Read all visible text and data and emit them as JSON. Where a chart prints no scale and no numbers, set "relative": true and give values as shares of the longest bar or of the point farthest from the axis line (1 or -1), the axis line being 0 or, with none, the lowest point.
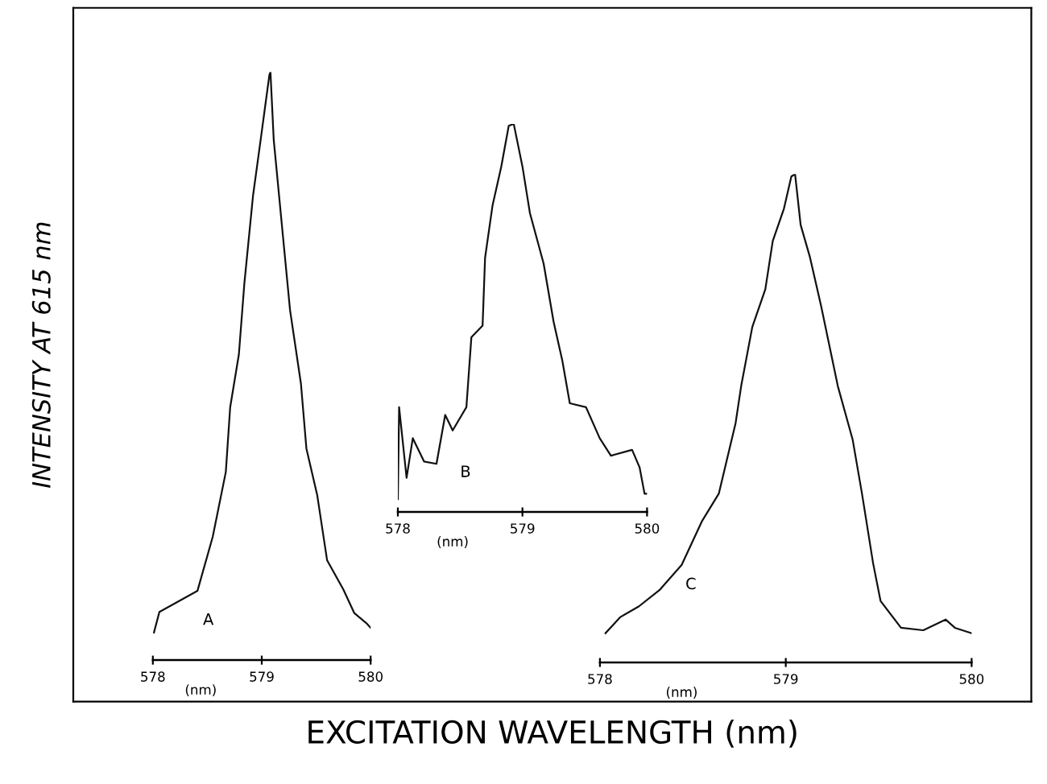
{
  "chart_data": [
    {
      "type": "other",
      "xlabel": "EXCITATION WAVELENGTH (nm)",
      "ylabel": "INTENSITY AT 615 nm"
    },
    {
      "type": "line",
      "relative": true,
      "xlabel": "(nm)",
      "xlim": [
        578,
        580
      ],
      "xticks": [
        578,
        579,
        580
      ],
      "tick_labels": "x",
      "grid": false,
      "annotations": [
        "A"
      ],
      "series": [
        {
          "color": "#111111",
          "x": [
            578.01,
            578.06,
            578.41,
            578.55,
            578.67,
            578.71,
            578.79,
            578.84,
            578.92,
            578.99,
            579.07,
            579.08,
            579.11,
            579.19,
            579.26,
            579.36,
            579.41,
            579.51,
            579.6,
            579.75,
            579.85,
            579.96,
            580.0
          ],
          "values": [
            0.047,
            0.082,
            0.118,
            0.21,
            0.32,
            0.43,
            0.52,
            0.64,
            0.79,
            0.885,
            0.995,
            1.0,
            0.885,
            0.73,
            0.595,
            0.47,
            0.36,
            0.28,
            0.17,
            0.12,
            0.08,
            0.063,
            0.055
          ]
        }
      ]
    },
    {
      "type": "line",
      "relative": true,
      "xlabel": "(nm)",
      "xlim": [
        578,
        580
      ],
      "xticks": [
        578,
        579,
        580
      ],
      "tick_labels": "x",
      "grid": false,
      "annotations": [
        "B"
      ],
      "series": [
        {
          "color": "#111111",
          "x": [
            578.0,
            578.01,
            578.07,
            578.12,
            578.21,
            578.31,
            578.38,
            578.44,
            578.55,
            578.59,
            578.68,
            578.7,
            578.76,
            578.83,
            578.89,
            578.93,
            579.0,
            579.06,
            579.17,
            579.25,
            579.32,
            579.38,
            579.51,
            579.62,
            579.71,
            579.88,
            579.94,
            579.98,
            580.0
          ],
          "values": [
            0.033,
            0.27,
            0.088,
            0.19,
            0.13,
            0.124,
            0.25,
            0.21,
            0.27,
            0.45,
            0.48,
            0.655,
            0.79,
            0.89,
            0.995,
            1.0,
            0.89,
            0.77,
            0.64,
            0.49,
            0.39,
            0.28,
            0.27,
            0.19,
            0.145,
            0.16,
            0.115,
            0.047,
            0.047
          ]
        }
      ]
    },
    {
      "type": "line",
      "relative": true,
      "xlabel": "(nm)",
      "xlim": [
        578,
        580
      ],
      "xticks": [
        578,
        579,
        580
      ],
      "tick_labels": "x",
      "grid": false,
      "annotations": [
        "C"
      ],
      "series": [
        {
          "color": "#111111",
          "x": [
            578.03,
            578.11,
            578.21,
            578.32,
            578.44,
            578.55,
            578.64,
            578.73,
            578.76,
            578.82,
            578.89,
            578.93,
            578.99,
            579.03,
            579.05,
            579.08,
            579.13,
            579.19,
            579.28,
            579.36,
            579.41,
            579.47,
            579.51,
            579.62,
            579.74,
            579.86,
            579.91,
            580.0
          ],
          "values": [
            0.06,
            0.093,
            0.115,
            0.148,
            0.2,
            0.29,
            0.346,
            0.49,
            0.566,
            0.687,
            0.764,
            0.863,
            0.929,
            0.995,
            1.0,
            0.896,
            0.83,
            0.73,
            0.566,
            0.456,
            0.346,
            0.203,
            0.126,
            0.071,
            0.066,
            0.088,
            0.071,
            0.06
          ]
        }
      ]
    }
  ]
}
